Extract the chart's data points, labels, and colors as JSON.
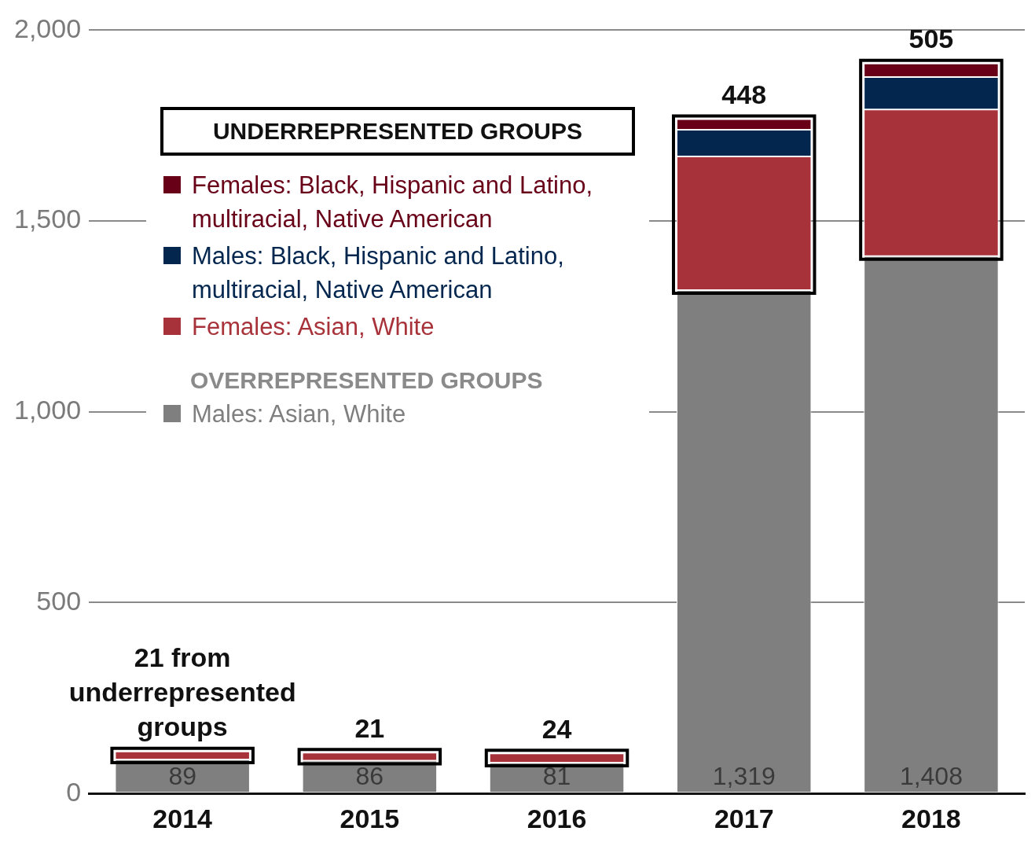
{
  "chart_data": {
    "type": "bar",
    "stacked": true,
    "categories": [
      "2014",
      "2015",
      "2016",
      "2017",
      "2018"
    ],
    "series": [
      {
        "name": "Males: Asian, White",
        "color": "#7f7f7f",
        "values": [
          89,
          86,
          81,
          1319,
          1408
        ],
        "value_labels": [
          "89",
          "86",
          "81",
          "1,319",
          "1,408"
        ]
      },
      {
        "name": "Females: Asian, White",
        "color": "#a8323a",
        "values": [
          21,
          21,
          24,
          350,
          384
        ]
      },
      {
        "name": "Males: Black, Hispanic and Latino, multiracial, Native American",
        "color": "#03264f",
        "values": [
          0,
          0,
          0,
          70,
          85
        ]
      },
      {
        "name": "Females: Black, Hispanic and Latino, multiracial, Native American",
        "color": "#680018",
        "values": [
          0,
          0,
          0,
          28,
          36
        ]
      }
    ],
    "ylim": [
      0,
      2000
    ],
    "yticks": [
      {
        "value": 0,
        "label": "0"
      },
      {
        "value": 500,
        "label": "500"
      },
      {
        "value": 1000,
        "label": "1,000"
      },
      {
        "value": 1500,
        "label": "1,500"
      },
      {
        "value": 2000,
        "label": "2,000"
      }
    ],
    "grid": "y",
    "legend": "top left",
    "legend_title": "UNDERREPRESENTED GROUPS",
    "annotations": [
      "OVERREPRESENTED GROUPS",
      {
        "text": "21 from underrepresented groups",
        "x": "2014",
        "y": 110
      },
      {
        "text": "21",
        "x": "2015",
        "y": 107
      },
      {
        "text": "24",
        "x": "2016",
        "y": 105
      },
      {
        "text": "448",
        "x": "2017",
        "y": 1767
      },
      {
        "text": "505",
        "x": "2018",
        "y": 1913
      }
    ]
  }
}
